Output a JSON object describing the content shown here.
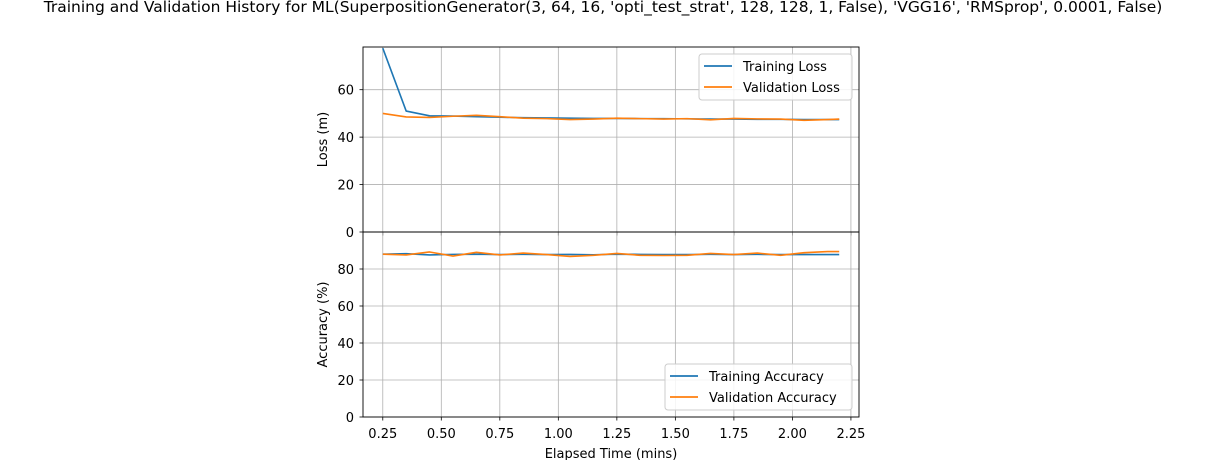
{
  "title": "Training and Validation History for ML(SuperpositionGenerator(3, 64, 16, 'opti_test_strat', 128, 128, 1, False), 'VGG16', 'RMSprop', 0.0001, False)",
  "colors": {
    "training": "#1f77b4",
    "validation": "#ff7f0e",
    "grid": "#b0b0b0",
    "axis": "#000000"
  },
  "chart_data": [
    {
      "type": "line",
      "ylabel": "Loss (m)",
      "xlabel": "",
      "grid": true,
      "legend": "top-right",
      "xlim": [
        0.1655,
        2.2845
      ],
      "ylim": [
        0,
        78
      ],
      "xticks": [
        0.25,
        0.5,
        0.75,
        1.0,
        1.25,
        1.5,
        1.75,
        2.0,
        2.25
      ],
      "xtick_labels": [],
      "yticks": [
        0,
        20,
        40,
        60
      ],
      "ytick_labels": [
        "0",
        "20",
        "40",
        "60"
      ],
      "x": [
        0.25,
        0.35,
        0.45,
        0.55,
        0.65,
        0.75,
        0.85,
        0.95,
        1.05,
        1.15,
        1.25,
        1.35,
        1.45,
        1.55,
        1.65,
        1.75,
        1.85,
        1.95,
        2.05,
        2.15,
        2.2
      ],
      "series": [
        {
          "name": "Training Loss",
          "color": "#1f77b4",
          "values": [
            77.5,
            51.0,
            49.0,
            48.9,
            48.6,
            48.4,
            48.2,
            48.1,
            48.0,
            47.9,
            47.9,
            47.8,
            47.8,
            47.7,
            47.6,
            47.6,
            47.5,
            47.5,
            47.4,
            47.4,
            47.4
          ]
        },
        {
          "name": "Validation Loss",
          "color": "#ff7f0e",
          "values": [
            50.0,
            48.5,
            48.3,
            48.8,
            49.2,
            48.6,
            48.0,
            47.8,
            47.4,
            47.6,
            48.0,
            47.8,
            47.6,
            47.8,
            47.3,
            47.9,
            47.7,
            47.6,
            47.1,
            47.4,
            47.6
          ]
        }
      ]
    },
    {
      "type": "line",
      "ylabel": "Accuracy (%)",
      "xlabel": "Elapsed Time (mins)",
      "grid": true,
      "legend": "bottom-right",
      "xlim": [
        0.1655,
        2.2845
      ],
      "ylim": [
        0,
        100
      ],
      "xticks": [
        0.25,
        0.5,
        0.75,
        1.0,
        1.25,
        1.5,
        1.75,
        2.0,
        2.25
      ],
      "xtick_labels": [
        "0.25",
        "0.50",
        "0.75",
        "1.00",
        "1.25",
        "1.50",
        "1.75",
        "2.00",
        "2.25"
      ],
      "yticks": [
        0,
        20,
        40,
        60,
        80
      ],
      "ytick_labels": [
        "0",
        "20",
        "40",
        "60",
        "80"
      ],
      "x": [
        0.25,
        0.35,
        0.45,
        0.55,
        0.65,
        0.75,
        0.85,
        0.95,
        1.05,
        1.15,
        1.25,
        1.35,
        1.45,
        1.55,
        1.65,
        1.75,
        1.85,
        1.95,
        2.05,
        2.15,
        2.2
      ],
      "series": [
        {
          "name": "Training Accuracy",
          "color": "#1f77b4",
          "values": [
            88.0,
            88.3,
            87.6,
            87.9,
            88.0,
            87.8,
            87.9,
            87.8,
            87.9,
            87.7,
            88.0,
            87.9,
            87.8,
            87.8,
            87.9,
            87.8,
            87.9,
            87.8,
            87.8,
            87.8,
            87.8
          ]
        },
        {
          "name": "Validation Accuracy",
          "color": "#ff7f0e",
          "values": [
            88.0,
            87.6,
            89.2,
            87.0,
            89.0,
            87.6,
            88.6,
            87.8,
            86.8,
            87.4,
            88.4,
            87.4,
            87.3,
            87.4,
            88.4,
            87.8,
            88.6,
            87.4,
            88.8,
            89.4,
            89.4
          ]
        }
      ]
    }
  ]
}
